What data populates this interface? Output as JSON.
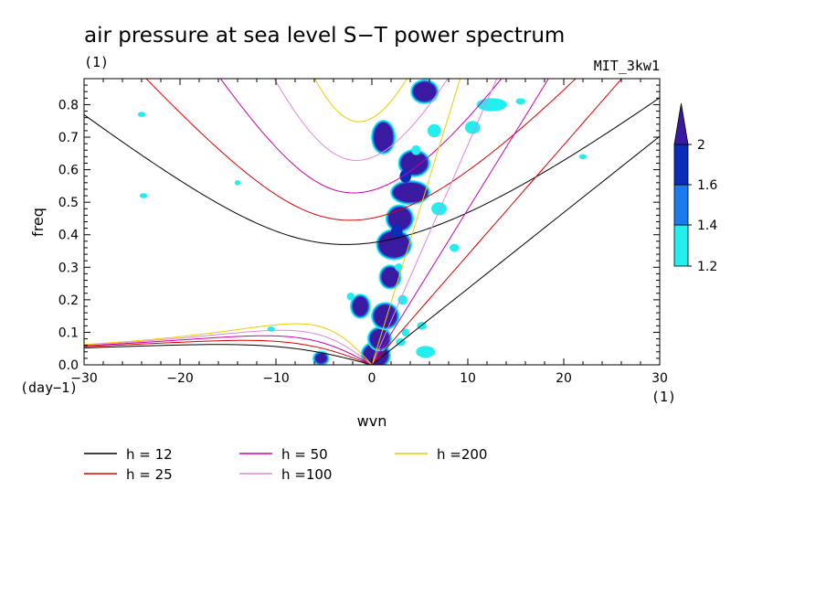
{
  "chart_data": {
    "type": "contour",
    "title": "air pressure at sea level S−T power spectrum",
    "units_left": "(1)",
    "model_label": "MIT_3kw1",
    "xlabel": "wvn",
    "ylabel": "freq",
    "x_unit_label": "(1)",
    "y_unit_label": "(day−1)",
    "xlim": [
      -30,
      30
    ],
    "ylim": [
      0,
      0.88
    ],
    "x_ticks": [
      {
        "v": -30,
        "label": "−30"
      },
      {
        "v": -20,
        "label": "−20"
      },
      {
        "v": -10,
        "label": "−10"
      },
      {
        "v": 0,
        "label": "0"
      },
      {
        "v": 10,
        "label": "10"
      },
      {
        "v": 20,
        "label": "20"
      },
      {
        "v": 30,
        "label": "30"
      }
    ],
    "y_ticks": [
      {
        "v": 0.0,
        "label": "0.0"
      },
      {
        "v": 0.1,
        "label": "0.1"
      },
      {
        "v": 0.2,
        "label": "0.2"
      },
      {
        "v": 0.3,
        "label": "0.3"
      },
      {
        "v": 0.4,
        "label": "0.4"
      },
      {
        "v": 0.5,
        "label": "0.5"
      },
      {
        "v": 0.6,
        "label": "0.6"
      },
      {
        "v": 0.7,
        "label": "0.7"
      },
      {
        "v": 0.8,
        "label": "0.8"
      }
    ],
    "series": [
      {
        "name": "h = 12",
        "h": 12,
        "color": "#000000"
      },
      {
        "name": "h = 25",
        "h": 25,
        "color": "#dd0000"
      },
      {
        "name": "h = 50",
        "h": 50,
        "color": "#cc00aa"
      },
      {
        "name": "h =100",
        "h": 100,
        "color": "#dd88dd"
      },
      {
        "name": "h =200",
        "h": 200,
        "color": "#eecc00"
      }
    ],
    "colorbar": {
      "levels": [
        {
          "label": "1.2",
          "v": 1.2
        },
        {
          "label": "1.4",
          "v": 1.4
        },
        {
          "label": "1.6",
          "v": 1.6
        },
        {
          "label": "2",
          "v": 2.0
        }
      ],
      "colors": [
        "#22eeee",
        "#1a7aee",
        "#0a2cb8",
        "#3a1aa0"
      ]
    },
    "blobs": [
      {
        "x": 0.4,
        "y": 0.03,
        "rx": 1.3,
        "ry": 0.035,
        "level": 3
      },
      {
        "x": 0.8,
        "y": 0.08,
        "rx": 1.0,
        "ry": 0.03,
        "level": 3
      },
      {
        "x": 1.4,
        "y": 0.15,
        "rx": 1.2,
        "ry": 0.035,
        "level": 3
      },
      {
        "x": -1.2,
        "y": 0.18,
        "rx": 0.8,
        "ry": 0.03,
        "level": 3
      },
      {
        "x": 1.9,
        "y": 0.27,
        "rx": 0.9,
        "ry": 0.03,
        "level": 3
      },
      {
        "x": 2.3,
        "y": 0.37,
        "rx": 1.6,
        "ry": 0.04,
        "level": 3
      },
      {
        "x": 2.9,
        "y": 0.45,
        "rx": 1.2,
        "ry": 0.035,
        "level": 3
      },
      {
        "x": 4.0,
        "y": 0.53,
        "rx": 1.8,
        "ry": 0.03,
        "level": 3
      },
      {
        "x": 4.4,
        "y": 0.62,
        "rx": 1.4,
        "ry": 0.035,
        "level": 3
      },
      {
        "x": 1.2,
        "y": 0.7,
        "rx": 1.0,
        "ry": 0.045,
        "level": 3
      },
      {
        "x": 5.5,
        "y": 0.84,
        "rx": 1.2,
        "ry": 0.03,
        "level": 3
      },
      {
        "x": 3.5,
        "y": 0.58,
        "rx": 0.6,
        "ry": 0.02,
        "level": 2
      },
      {
        "x": 2.6,
        "y": 0.41,
        "rx": 0.6,
        "ry": 0.02,
        "level": 2
      },
      {
        "x": -5.3,
        "y": 0.02,
        "rx": 0.6,
        "ry": 0.015,
        "level": 3
      },
      {
        "x": 5.6,
        "y": 0.04,
        "rx": 1.0,
        "ry": 0.018,
        "level": 0
      },
      {
        "x": 7.0,
        "y": 0.48,
        "rx": 0.8,
        "ry": 0.02,
        "level": 0
      },
      {
        "x": 12.5,
        "y": 0.8,
        "rx": 1.6,
        "ry": 0.02,
        "level": 0
      },
      {
        "x": 10.5,
        "y": 0.73,
        "rx": 0.8,
        "ry": 0.02,
        "level": 0
      },
      {
        "x": 6.5,
        "y": 0.72,
        "rx": 0.7,
        "ry": 0.02,
        "level": 0
      },
      {
        "x": 3.2,
        "y": 0.2,
        "rx": 0.5,
        "ry": 0.015,
        "level": 0
      },
      {
        "x": -2.2,
        "y": 0.21,
        "rx": 0.4,
        "ry": 0.012,
        "level": 0
      },
      {
        "x": -10.5,
        "y": 0.11,
        "rx": 0.4,
        "ry": 0.008,
        "level": 0
      },
      {
        "x": 5.2,
        "y": 0.12,
        "rx": 0.5,
        "ry": 0.012,
        "level": 0
      },
      {
        "x": -24.0,
        "y": 0.77,
        "rx": 0.4,
        "ry": 0.008,
        "level": 0
      },
      {
        "x": -23.8,
        "y": 0.52,
        "rx": 0.4,
        "ry": 0.008,
        "level": 0
      },
      {
        "x": -14.0,
        "y": 0.56,
        "rx": 0.3,
        "ry": 0.008,
        "level": 0
      },
      {
        "x": 22.0,
        "y": 0.64,
        "rx": 0.4,
        "ry": 0.008,
        "level": 0
      },
      {
        "x": 3.0,
        "y": 0.07,
        "rx": 0.5,
        "ry": 0.012,
        "level": 0
      },
      {
        "x": 3.5,
        "y": 0.1,
        "rx": 0.4,
        "ry": 0.012,
        "level": 0
      },
      {
        "x": 8.6,
        "y": 0.36,
        "rx": 0.5,
        "ry": 0.012,
        "level": 0
      },
      {
        "x": 15.5,
        "y": 0.81,
        "rx": 0.5,
        "ry": 0.01,
        "level": 0
      },
      {
        "x": 2.8,
        "y": 0.3,
        "rx": 0.4,
        "ry": 0.012,
        "level": 0
      },
      {
        "x": 4.6,
        "y": 0.66,
        "rx": 0.5,
        "ry": 0.015,
        "level": 0
      }
    ]
  }
}
